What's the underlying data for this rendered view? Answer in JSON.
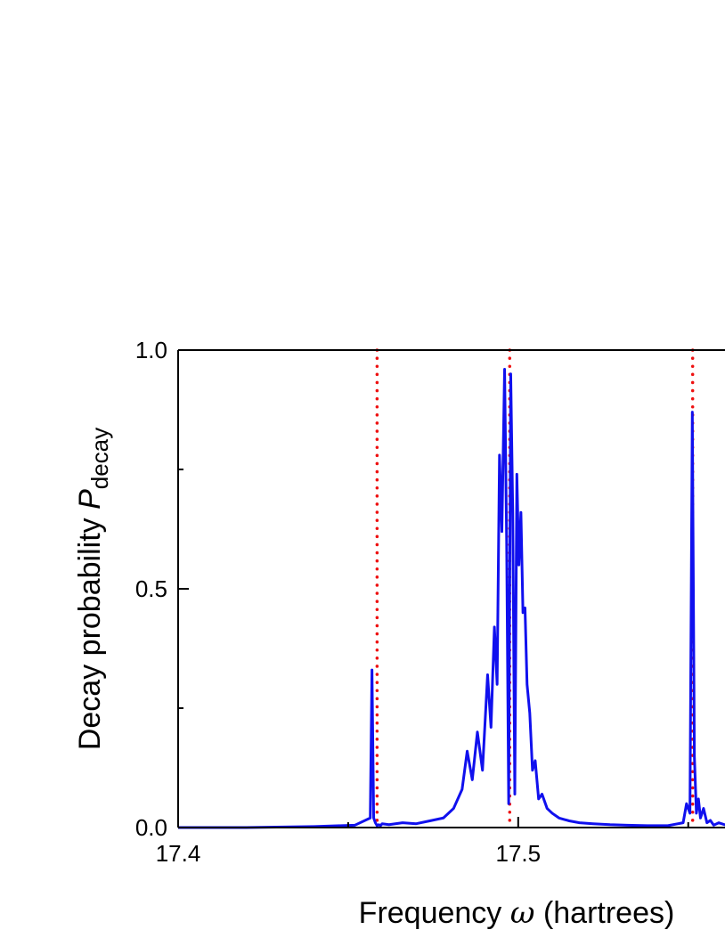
{
  "chart_data": {
    "type": "line",
    "xlabel": {
      "prefix": "Frequency ",
      "symbol": "ω",
      "suffix": " (hartrees)"
    },
    "ylabel": {
      "prefix": "Decay probability  ",
      "symbol": "P",
      "subscript": "decay"
    },
    "xlim": [
      17.4,
      17.565
    ],
    "ylim": [
      0.0,
      1.0
    ],
    "x_ticks": [
      {
        "value": 17.4,
        "label": "17.4"
      },
      {
        "value": 17.5,
        "label": "17.5"
      }
    ],
    "y_ticks": [
      {
        "value": 0.0,
        "label": "0.0"
      },
      {
        "value": 0.5,
        "label": "0.5"
      },
      {
        "value": 1.0,
        "label": "1.0"
      }
    ],
    "y_minor_ticks": [
      0.25,
      0.75
    ],
    "x_minor_ticks": [
      17.45,
      17.55
    ],
    "grid": false,
    "series": [
      {
        "style": "solid",
        "color": "#1010ee",
        "x": [
          17.4,
          17.42,
          17.44,
          17.448,
          17.452,
          17.4565,
          17.457,
          17.4575,
          17.458,
          17.4585,
          17.459,
          17.4595,
          17.46,
          17.462,
          17.466,
          17.47,
          17.474,
          17.478,
          17.481,
          17.4835,
          17.485,
          17.4865,
          17.488,
          17.4895,
          17.491,
          17.492,
          17.493,
          17.4938,
          17.4945,
          17.4952,
          17.496,
          17.4966,
          17.4972,
          17.4978,
          17.4984,
          17.499,
          17.4996,
          17.5002,
          17.5008,
          17.5014,
          17.502,
          17.5026,
          17.5034,
          17.5042,
          17.505,
          17.506,
          17.507,
          17.5085,
          17.51,
          17.512,
          17.515,
          17.518,
          17.522,
          17.527,
          17.532,
          17.538,
          17.544,
          17.5485,
          17.5495,
          17.5505,
          17.5512,
          17.5518,
          17.5524,
          17.553,
          17.5536,
          17.5545,
          17.5555,
          17.5565,
          17.5575,
          17.559,
          17.562,
          17.565
        ],
        "y": [
          0.0,
          0.0,
          0.002,
          0.004,
          0.005,
          0.02,
          0.33,
          0.02,
          0.01,
          0.004,
          0.006,
          0.004,
          0.008,
          0.006,
          0.01,
          0.008,
          0.014,
          0.02,
          0.04,
          0.08,
          0.16,
          0.1,
          0.2,
          0.12,
          0.32,
          0.21,
          0.42,
          0.3,
          0.78,
          0.62,
          0.96,
          0.6,
          0.05,
          0.95,
          0.66,
          0.07,
          0.74,
          0.55,
          0.66,
          0.45,
          0.46,
          0.3,
          0.24,
          0.12,
          0.14,
          0.06,
          0.07,
          0.04,
          0.03,
          0.02,
          0.014,
          0.01,
          0.008,
          0.006,
          0.005,
          0.004,
          0.004,
          0.01,
          0.05,
          0.03,
          0.87,
          0.15,
          0.03,
          0.06,
          0.02,
          0.04,
          0.01,
          0.015,
          0.005,
          0.01,
          0.003,
          0.003
        ]
      }
    ],
    "reference_lines": [
      {
        "style": "dotted",
        "color": "#ee1111",
        "x": 17.4585
      },
      {
        "style": "dotted",
        "color": "#ee1111",
        "x": 17.4975
      },
      {
        "style": "dotted",
        "color": "#ee1111",
        "x": 17.5513
      }
    ]
  }
}
